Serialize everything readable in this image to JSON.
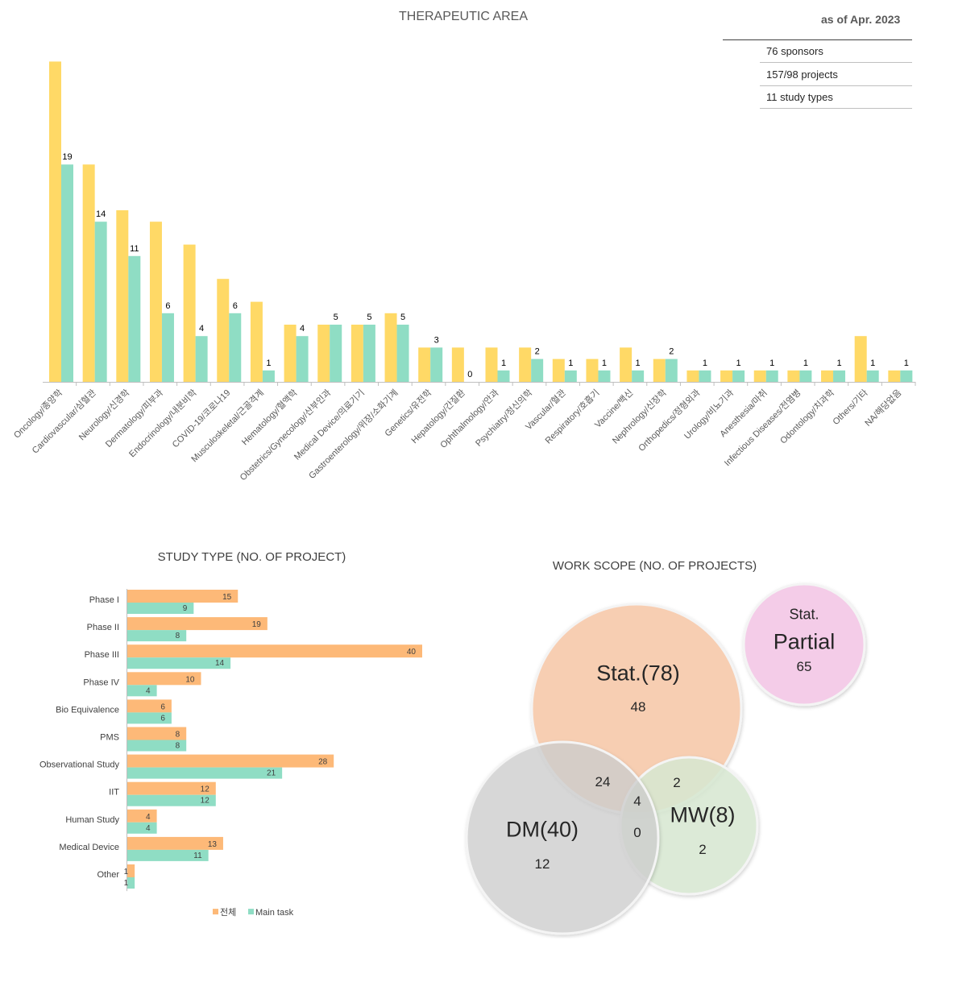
{
  "therapeutic_area": {
    "title": "THERAPEUTIC AREA",
    "as_of": "as of Apr. 2023",
    "summary": [
      "76 sponsors",
      "157/98 projects",
      "11 study types"
    ]
  },
  "colors": {
    "ta_total": "#FFD966",
    "ta_main": "#8FDDC4",
    "st_total": "#FDB978",
    "st_main": "#8FDDC4",
    "stat_circle": "#F8CBAD",
    "dm_circle": "#D9D9D9",
    "mw_circle": "#D9EAD3",
    "partial_circle": "#F4CCE8"
  },
  "chart_data": [
    {
      "type": "bar",
      "title": "THERAPEUTIC AREA",
      "categories": [
        "Oncology/종양학",
        "Cardiovascular/심혈관",
        "Neurology/신경학",
        "Dermatology/피부과",
        "Endocrinology/내분비학",
        "COVID-19/코로나19",
        "Musculoskeletal/근골격계",
        "Hematology/혈액학",
        "Obstetrics/Gynecology/산부인과",
        "Medical Device/의료기기",
        "Gastroenterology/위장/소화기계",
        "Genetics/유전학",
        "Hepatology/간질환",
        "Ophthalmology/안과",
        "Psychiatry/정신의학",
        "Vascular/혈관",
        "Respiratory/호흡기",
        "Vaccine/백신",
        "Nephrology/신장학",
        "Orthopedics/정형외과",
        "Urology/비뇨기과",
        "Anesthesia/마취",
        "Infectious Diseases/전염병",
        "Odontology/치과학",
        "Others/기타",
        "NA/해당없음"
      ],
      "series": [
        {
          "values": [
            28,
            19,
            15,
            14,
            12,
            9,
            7,
            5,
            5,
            5,
            6,
            3,
            3,
            3,
            3,
            2,
            2,
            3,
            2,
            1,
            1,
            1,
            1,
            1,
            4,
            1
          ]
        },
        {
          "values": [
            19,
            14,
            11,
            6,
            4,
            6,
            1,
            4,
            5,
            5,
            5,
            3,
            0,
            1,
            2,
            1,
            1,
            1,
            2,
            1,
            1,
            1,
            1,
            1,
            1,
            1
          ],
          "data_labels": true
        }
      ],
      "ylim": [
        0,
        30
      ],
      "grid": false,
      "legend": "none"
    },
    {
      "type": "bar",
      "orientation": "horizontal",
      "title": "STUDY TYPE (NO. OF PROJECT)",
      "categories": [
        "Phase I",
        "Phase II",
        "Phase III",
        "Phase IV",
        "Bio Equivalence",
        "PMS",
        "Observational Study",
        "IIT",
        "Human Study",
        "Medical Device",
        "Other"
      ],
      "series": [
        {
          "name": "전체",
          "values": [
            15,
            19,
            40,
            10,
            6,
            8,
            28,
            12,
            4,
            13,
            1
          ]
        },
        {
          "name": "Main task",
          "values": [
            9,
            8,
            14,
            4,
            6,
            8,
            21,
            12,
            4,
            11,
            1
          ]
        }
      ],
      "xlim": [
        0,
        40
      ],
      "grid": false,
      "legend": "bottom"
    }
  ],
  "work_scope": {
    "title": "WORK SCOPE (NO. OF PROJECTS)",
    "stat_label": "Stat.(78)",
    "stat_only": "48",
    "dm_label": "DM(40)",
    "dm_only": "12",
    "mw_label": "MW(8)",
    "mw_only": "2",
    "stat_dm": "24",
    "stat_mw": "2",
    "all_three": "4",
    "dm_mw": "0",
    "partial_top": "Stat.",
    "partial_label": "Partial",
    "partial_value": "65"
  }
}
